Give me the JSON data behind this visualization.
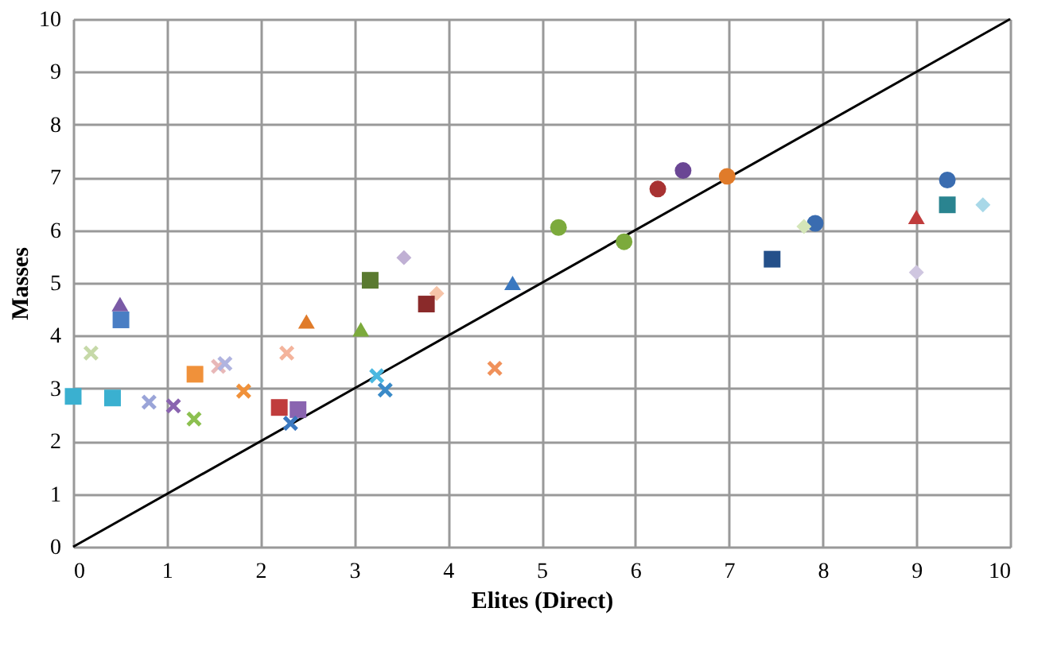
{
  "chart_data": {
    "type": "scatter",
    "xlabel": "Elites (Direct)",
    "ylabel": "Masses",
    "xlim": [
      0,
      10
    ],
    "ylim": [
      0,
      10
    ],
    "xticks": [
      0,
      1,
      2,
      3,
      4,
      5,
      6,
      7,
      8,
      9,
      10
    ],
    "yticks": [
      0,
      1,
      2,
      3,
      4,
      5,
      6,
      7,
      8,
      9,
      10
    ],
    "grid": true,
    "series": [
      {
        "type": "line",
        "color": "#000000",
        "marker": "none",
        "x": [
          0,
          10
        ],
        "values": [
          0,
          10
        ]
      },
      {
        "color": "#7a5aa6",
        "marker": "triangle",
        "x": [
          0.5
        ],
        "values": [
          4.6
        ]
      },
      {
        "color": "#4a7ec4",
        "marker": "square",
        "x": [
          0.51
        ],
        "values": [
          4.3
        ]
      },
      {
        "color": "#c6d9a8",
        "marker": "cross",
        "x": [
          0.19
        ],
        "values": [
          3.67
        ]
      },
      {
        "color": "#f0913a",
        "marker": "square",
        "x": [
          1.3
        ],
        "values": [
          3.27
        ]
      },
      {
        "color": "#e8b8b8",
        "marker": "cross",
        "x": [
          1.55
        ],
        "values": [
          3.42
        ]
      },
      {
        "color": "#b0b4e0",
        "marker": "cross",
        "x": [
          1.62
        ],
        "values": [
          3.47
        ]
      },
      {
        "color": "#f4b49c",
        "marker": "cross",
        "x": [
          2.28
        ],
        "values": [
          3.67
        ]
      },
      {
        "color": "#f0913a",
        "marker": "cross",
        "x": [
          1.82
        ],
        "values": [
          2.95
        ]
      },
      {
        "color": "#3ab0d0",
        "marker": "square",
        "x": [
          0.0
        ],
        "values": [
          2.85
        ]
      },
      {
        "color": "#3ab0d0",
        "marker": "square",
        "x": [
          0.42
        ],
        "values": [
          2.82
        ]
      },
      {
        "color": "#9aa4d8",
        "marker": "cross",
        "x": [
          0.81
        ],
        "values": [
          2.74
        ]
      },
      {
        "color": "#8a64b0",
        "marker": "cross",
        "x": [
          1.07
        ],
        "values": [
          2.67
        ]
      },
      {
        "color": "#8cc050",
        "marker": "cross",
        "x": [
          1.29
        ],
        "values": [
          2.42
        ]
      },
      {
        "color": "#c03c3c",
        "marker": "square",
        "x": [
          2.2
        ],
        "values": [
          2.64
        ]
      },
      {
        "color": "#8a64b0",
        "marker": "square",
        "x": [
          2.4
        ],
        "values": [
          2.6
        ]
      },
      {
        "color": "#3a78c0",
        "marker": "cross",
        "x": [
          2.32
        ],
        "values": [
          2.34
        ]
      },
      {
        "color": "#e07b2a",
        "marker": "triangle",
        "x": [
          2.49
        ],
        "values": [
          4.27
        ]
      },
      {
        "color": "#7caa3c",
        "marker": "triangle",
        "x": [
          3.07
        ],
        "values": [
          4.12
        ]
      },
      {
        "color": "#4ab8e0",
        "marker": "cross",
        "x": [
          3.24
        ],
        "values": [
          3.24
        ]
      },
      {
        "color": "#3a8ac8",
        "marker": "cross",
        "x": [
          3.33
        ],
        "values": [
          2.97
        ]
      },
      {
        "color": "#7caa3c",
        "marker": "circle",
        "x": [
          5.18
        ],
        "values": [
          6.05
        ]
      },
      {
        "color": "#7caa3c",
        "marker": "circle",
        "x": [
          5.88
        ],
        "values": [
          5.78
        ]
      },
      {
        "color": "#c0b0d4",
        "marker": "diamond",
        "x": [
          3.53
        ],
        "values": [
          5.48
        ]
      },
      {
        "color": "#5a7a30",
        "marker": "square",
        "x": [
          3.17
        ],
        "values": [
          5.05
        ]
      },
      {
        "color": "#3a78c0",
        "marker": "triangle",
        "x": [
          4.69
        ],
        "values": [
          5.0
        ]
      },
      {
        "color": "#f6c4a8",
        "marker": "diamond",
        "x": [
          3.88
        ],
        "values": [
          4.8
        ]
      },
      {
        "color": "#8a2a2a",
        "marker": "square",
        "x": [
          3.77
        ],
        "values": [
          4.6
        ]
      },
      {
        "color": "#f0915a",
        "marker": "cross",
        "x": [
          4.5
        ],
        "values": [
          3.38
        ]
      },
      {
        "color": "#a83232",
        "marker": "circle",
        "x": [
          6.24
        ],
        "values": [
          6.78
        ]
      },
      {
        "color": "#6a4694",
        "marker": "circle",
        "x": [
          6.51
        ],
        "values": [
          7.13
        ]
      },
      {
        "color": "#e07b2a",
        "marker": "circle",
        "x": [
          6.98
        ],
        "values": [
          7.02
        ]
      },
      {
        "color": "#3a6cb0",
        "marker": "circle",
        "x": [
          7.92
        ],
        "values": [
          6.13
        ]
      },
      {
        "color": "#d4e6b8",
        "marker": "diamond",
        "x": [
          7.8
        ],
        "values": [
          6.07
        ]
      },
      {
        "color": "#24508a",
        "marker": "square",
        "x": [
          7.46
        ],
        "values": [
          5.45
        ]
      },
      {
        "color": "#c03c3c",
        "marker": "triangle",
        "x": [
          9.0
        ],
        "values": [
          6.25
        ]
      },
      {
        "color": "#cfc6e0",
        "marker": "diamond",
        "x": [
          9.0
        ],
        "values": [
          5.2
        ]
      },
      {
        "color": "#3a6cb0",
        "marker": "circle",
        "x": [
          9.33
        ],
        "values": [
          6.95
        ]
      },
      {
        "color": "#2a8490",
        "marker": "square",
        "x": [
          9.33
        ],
        "values": [
          6.48
        ]
      },
      {
        "color": "#a8d8e8",
        "marker": "diamond",
        "x": [
          9.71
        ],
        "values": [
          6.48
        ]
      }
    ]
  }
}
